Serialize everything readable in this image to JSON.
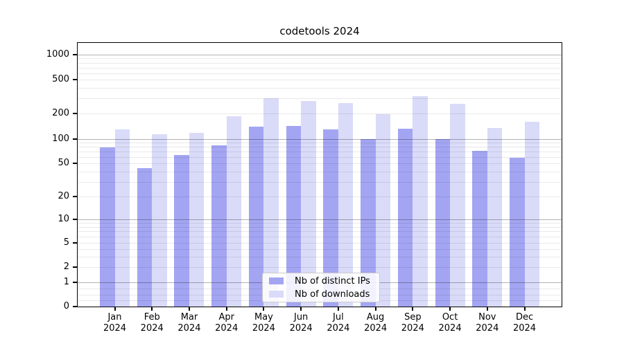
{
  "chart_data": {
    "type": "bar",
    "title": "codetools 2024",
    "categories": [
      "Jan",
      "Feb",
      "Mar",
      "Apr",
      "May",
      "Jun",
      "Jul",
      "Aug",
      "Sep",
      "Oct",
      "Nov",
      "Dec"
    ],
    "year": "2024",
    "series": [
      {
        "name": "Nb of distinct IPs",
        "color": "#a3a5f2",
        "values": [
          79,
          44,
          64,
          84,
          139,
          142,
          130,
          100,
          133,
          100,
          72,
          59
        ]
      },
      {
        "name": "Nb of downloads",
        "color": "#d9dbf8",
        "values": [
          131,
          115,
          118,
          185,
          300,
          280,
          265,
          196,
          320,
          260,
          135,
          160
        ]
      }
    ],
    "yticks": [
      0,
      1,
      2,
      5,
      10,
      20,
      50,
      100,
      200,
      500,
      1000
    ],
    "yscale": "symlog",
    "ylim": [
      0,
      1400
    ],
    "xlabel": "",
    "ylabel": "",
    "grid": true,
    "legend_position": "bottom-center"
  }
}
